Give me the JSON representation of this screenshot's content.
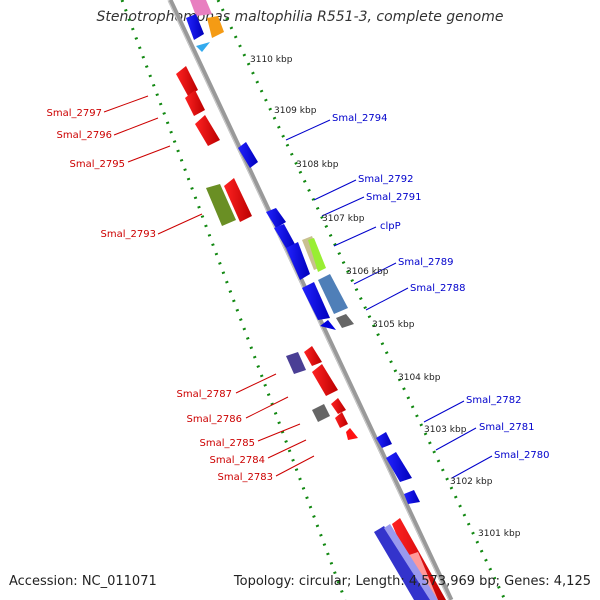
{
  "title": "Stenotrophomonas maltophilia R551-3, complete genome",
  "footer": {
    "accession": "Accession: NC_011071",
    "topology": "Topology: circular; Length: 4,573,969 bp; Genes: 4,125"
  },
  "colors": {
    "plus_gene": "#0000ee",
    "minus_gene": "#ee0000",
    "label_plus": "#0000cc",
    "label_minus": "#cc0000",
    "backbone": "#888888",
    "tick_dots": "#118811"
  },
  "ticks": [
    "3110 kbp",
    "3109 kbp",
    "3108 kbp",
    "3107 kbp",
    "3106 kbp",
    "3105 kbp",
    "3104 kbp",
    "3103 kbp",
    "3102 kbp",
    "3101 kbp"
  ],
  "labels_minus": [
    "Smal_2797",
    "Smal_2796",
    "Smal_2795",
    "Smal_2793",
    "Smal_2787",
    "Smal_2786",
    "Smal_2785",
    "Smal_2784",
    "Smal_2783"
  ],
  "labels_plus": [
    "Smal_2794",
    "Smal_2792",
    "Smal_2791",
    "clpP",
    "Smal_2789",
    "Smal_2788",
    "Smal_2782",
    "Smal_2781",
    "Smal_2780"
  ]
}
